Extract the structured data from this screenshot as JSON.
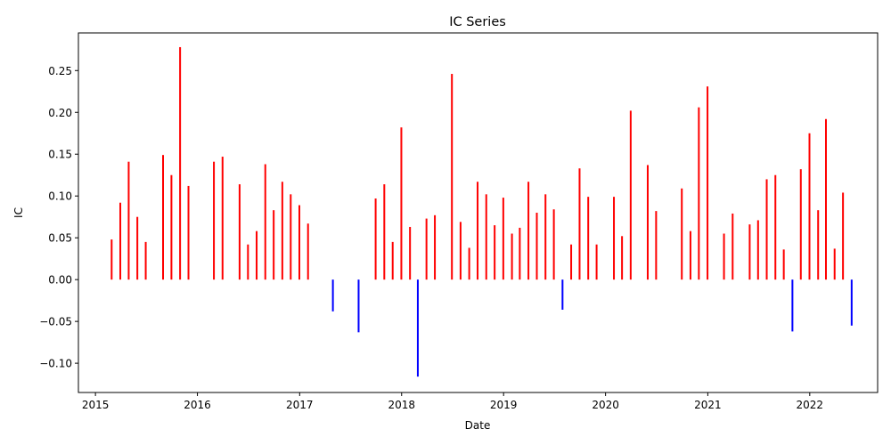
{
  "chart_data": {
    "type": "bar",
    "title": "IC Series",
    "xlabel": "Date",
    "ylabel": "IC",
    "x_axis_type": "date",
    "xlim": [
      "2014-11-01",
      "2022-09-01"
    ],
    "ylim": [
      -0.135,
      0.295
    ],
    "grid": false,
    "legend": "none",
    "colors": {
      "positive": "#ff0000",
      "negative": "#0000ff"
    },
    "x_ticks": [
      {
        "date": "2015-01-01",
        "label": "2015"
      },
      {
        "date": "2016-01-01",
        "label": "2016"
      },
      {
        "date": "2017-01-01",
        "label": "2017"
      },
      {
        "date": "2018-01-01",
        "label": "2018"
      },
      {
        "date": "2019-01-01",
        "label": "2019"
      },
      {
        "date": "2020-01-01",
        "label": "2020"
      },
      {
        "date": "2021-01-01",
        "label": "2021"
      },
      {
        "date": "2022-01-01",
        "label": "2022"
      }
    ],
    "y_ticks": [
      {
        "value": -0.1,
        "label": "−0.10"
      },
      {
        "value": -0.05,
        "label": "−0.05"
      },
      {
        "value": 0.0,
        "label": "0.00"
      },
      {
        "value": 0.05,
        "label": "0.05"
      },
      {
        "value": 0.1,
        "label": "0.10"
      },
      {
        "value": 0.15,
        "label": "0.15"
      },
      {
        "value": 0.2,
        "label": "0.20"
      },
      {
        "value": 0.25,
        "label": "0.25"
      }
    ],
    "points": [
      {
        "date": "2015-02-28",
        "value": 0.048
      },
      {
        "date": "2015-03-31",
        "value": 0.092
      },
      {
        "date": "2015-04-30",
        "value": 0.141
      },
      {
        "date": "2015-05-31",
        "value": 0.075
      },
      {
        "date": "2015-06-30",
        "value": 0.045
      },
      {
        "date": "2015-08-31",
        "value": 0.149
      },
      {
        "date": "2015-09-30",
        "value": 0.125
      },
      {
        "date": "2015-10-31",
        "value": 0.278
      },
      {
        "date": "2015-11-30",
        "value": 0.112
      },
      {
        "date": "2016-02-29",
        "value": 0.141
      },
      {
        "date": "2016-03-31",
        "value": 0.147
      },
      {
        "date": "2016-05-31",
        "value": 0.114
      },
      {
        "date": "2016-06-30",
        "value": 0.042
      },
      {
        "date": "2016-07-31",
        "value": 0.058
      },
      {
        "date": "2016-08-31",
        "value": 0.138
      },
      {
        "date": "2016-09-30",
        "value": 0.083
      },
      {
        "date": "2016-10-31",
        "value": 0.117
      },
      {
        "date": "2016-11-30",
        "value": 0.102
      },
      {
        "date": "2016-12-31",
        "value": 0.089
      },
      {
        "date": "2017-01-31",
        "value": 0.067
      },
      {
        "date": "2017-04-30",
        "value": -0.038
      },
      {
        "date": "2017-07-31",
        "value": -0.063
      },
      {
        "date": "2017-09-30",
        "value": 0.097
      },
      {
        "date": "2017-10-31",
        "value": 0.114
      },
      {
        "date": "2017-11-30",
        "value": 0.045
      },
      {
        "date": "2017-12-31",
        "value": 0.182
      },
      {
        "date": "2018-01-31",
        "value": 0.063
      },
      {
        "date": "2018-02-28",
        "value": -0.116
      },
      {
        "date": "2018-03-31",
        "value": 0.073
      },
      {
        "date": "2018-04-30",
        "value": 0.077
      },
      {
        "date": "2018-06-30",
        "value": 0.246
      },
      {
        "date": "2018-07-31",
        "value": 0.069
      },
      {
        "date": "2018-08-31",
        "value": 0.038
      },
      {
        "date": "2018-09-30",
        "value": 0.117
      },
      {
        "date": "2018-10-31",
        "value": 0.102
      },
      {
        "date": "2018-11-30",
        "value": 0.065
      },
      {
        "date": "2018-12-31",
        "value": 0.098
      },
      {
        "date": "2019-01-31",
        "value": 0.055
      },
      {
        "date": "2019-02-28",
        "value": 0.062
      },
      {
        "date": "2019-03-31",
        "value": 0.117
      },
      {
        "date": "2019-04-30",
        "value": 0.08
      },
      {
        "date": "2019-05-31",
        "value": 0.102
      },
      {
        "date": "2019-06-30",
        "value": 0.084
      },
      {
        "date": "2019-07-31",
        "value": -0.036
      },
      {
        "date": "2019-08-31",
        "value": 0.042
      },
      {
        "date": "2019-09-30",
        "value": 0.133
      },
      {
        "date": "2019-10-31",
        "value": 0.099
      },
      {
        "date": "2019-11-30",
        "value": 0.042
      },
      {
        "date": "2020-01-31",
        "value": 0.099
      },
      {
        "date": "2020-02-29",
        "value": 0.052
      },
      {
        "date": "2020-03-31",
        "value": 0.202
      },
      {
        "date": "2020-05-31",
        "value": 0.137
      },
      {
        "date": "2020-06-30",
        "value": 0.082
      },
      {
        "date": "2020-09-30",
        "value": 0.109
      },
      {
        "date": "2020-10-31",
        "value": 0.058
      },
      {
        "date": "2020-11-30",
        "value": 0.206
      },
      {
        "date": "2020-12-31",
        "value": 0.231
      },
      {
        "date": "2021-02-28",
        "value": 0.055
      },
      {
        "date": "2021-03-31",
        "value": 0.079
      },
      {
        "date": "2021-05-31",
        "value": 0.066
      },
      {
        "date": "2021-06-30",
        "value": 0.071
      },
      {
        "date": "2021-07-31",
        "value": 0.12
      },
      {
        "date": "2021-08-31",
        "value": 0.125
      },
      {
        "date": "2021-09-30",
        "value": 0.036
      },
      {
        "date": "2021-10-31",
        "value": -0.062
      },
      {
        "date": "2021-11-30",
        "value": 0.132
      },
      {
        "date": "2021-12-31",
        "value": 0.175
      },
      {
        "date": "2022-01-31",
        "value": 0.083
      },
      {
        "date": "2022-02-28",
        "value": 0.192
      },
      {
        "date": "2022-03-31",
        "value": 0.037
      },
      {
        "date": "2022-04-30",
        "value": 0.104
      },
      {
        "date": "2022-05-31",
        "value": -0.055
      }
    ]
  }
}
